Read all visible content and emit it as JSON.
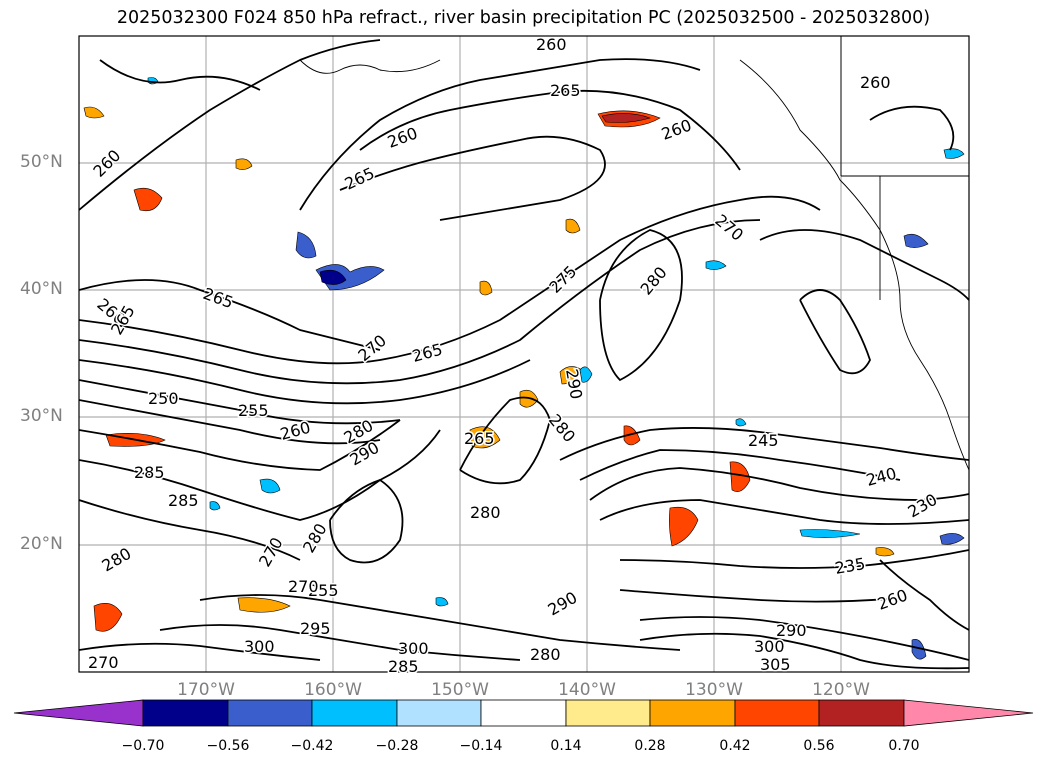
{
  "title": "2025032300 F024 850 hPa refract., river basin precipitation PC (2025032500 - 2025032800)",
  "map": {
    "lat_labels": [
      "50°N",
      "40°N",
      "30°N",
      "20°N"
    ],
    "lon_labels": [
      "170°W",
      "160°W",
      "150°W",
      "140°W",
      "130°W",
      "120°W"
    ],
    "contour_labels": [
      "260",
      "265",
      "260",
      "260",
      "265",
      "260",
      "260",
      "270",
      "265",
      "275",
      "280",
      "260",
      "270",
      "265",
      "265",
      "250",
      "255",
      "260",
      "280",
      "290",
      "285",
      "285",
      "280",
      "270",
      "280",
      "265",
      "290",
      "280",
      "245",
      "240",
      "230",
      "235",
      "260",
      "290",
      "300",
      "305",
      "290",
      "280",
      "295",
      "300",
      "270",
      "255",
      "280",
      "285",
      "300",
      "270"
    ]
  },
  "colorbar": {
    "ticks": [
      "−0.70",
      "−0.56",
      "−0.42",
      "−0.28",
      "−0.14",
      "0.14",
      "0.28",
      "0.42",
      "0.56",
      "0.70"
    ],
    "colors": [
      "#9932cc",
      "#00008b",
      "#3a5fcd",
      "#00bfff",
      "#b0e2ff",
      "#ffffff",
      "#ffeb8b",
      "#ffa500",
      "#ff4500",
      "#b22222",
      "#ff88aa"
    ]
  }
}
